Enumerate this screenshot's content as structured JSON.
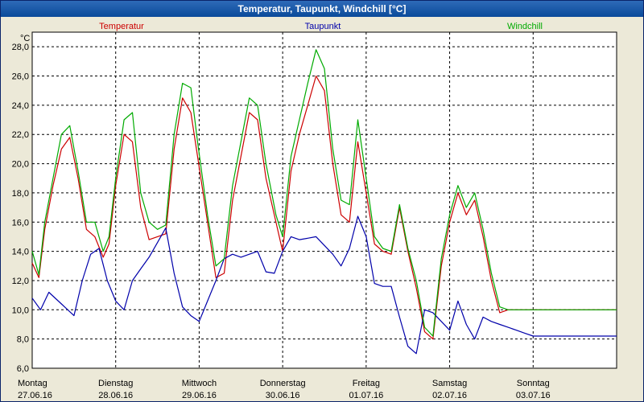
{
  "window": {
    "title": "Temperatur, Taupunkt, Windchill [°C]"
  },
  "colors": {
    "temperatur": "#CC0000",
    "taupunkt": "#0000AA",
    "windchill": "#00AA00",
    "plot_bg": "#FFFFFF",
    "grid": "#000000"
  },
  "chart_data": {
    "type": "line",
    "title": "Temperatur, Taupunkt, Windchill [°C]",
    "ylabel": "°C",
    "ylim": [
      6.0,
      29.0
    ],
    "yticks": [
      "6,0",
      "8,0",
      "10,0",
      "12,0",
      "14,0",
      "16,0",
      "18,0",
      "20,0",
      "22,0",
      "24,0",
      "26,0",
      "28,0"
    ],
    "xlim": [
      0,
      7
    ],
    "x_unit": "days since 27.06.16 00:00",
    "xticks": [
      {
        "day": "Montag",
        "date": "27.06.16"
      },
      {
        "day": "Dienstag",
        "date": "28.06.16"
      },
      {
        "day": "Mittwoch",
        "date": "29.06.16"
      },
      {
        "day": "Donnerstag",
        "date": "30.06.16"
      },
      {
        "day": "Freitag",
        "date": "01.07.16"
      },
      {
        "day": "Samstag",
        "date": "02.07.16"
      },
      {
        "day": "Sonntag",
        "date": "03.07.16"
      }
    ],
    "grid": true,
    "legend": "top",
    "series": [
      {
        "name": "Temperatur",
        "color": "#CC0000",
        "x": [
          0,
          0.08,
          0.15,
          0.25,
          0.35,
          0.45,
          0.55,
          0.65,
          0.75,
          0.85,
          0.92,
          1.0,
          1.1,
          1.2,
          1.3,
          1.4,
          1.5,
          1.6,
          1.7,
          1.8,
          1.9,
          1.98,
          2.1,
          2.2,
          2.3,
          2.4,
          2.5,
          2.6,
          2.7,
          2.8,
          2.92,
          3.0,
          3.1,
          3.2,
          3.3,
          3.4,
          3.5,
          3.6,
          3.7,
          3.8,
          3.9,
          4.0,
          4.1,
          4.2,
          4.3,
          4.4,
          4.5,
          4.6,
          4.7,
          4.8,
          4.9,
          5.0,
          5.1,
          5.2,
          5.3,
          5.4,
          5.5,
          5.6,
          5.7,
          5.8,
          5.9,
          6.0,
          6.1,
          6.2,
          6.3,
          6.4,
          6.5,
          6.6,
          6.7,
          6.8,
          6.9,
          7.0
        ],
        "y": [
          13.2,
          12.2,
          15.5,
          18.5,
          21.0,
          21.8,
          19.0,
          15.5,
          15.0,
          13.6,
          14.5,
          18.5,
          22.0,
          21.5,
          17.0,
          14.8,
          15.0,
          15.2,
          21.0,
          24.5,
          23.5,
          20.5,
          16.0,
          12.2,
          12.5,
          17.5,
          20.5,
          23.5,
          23.0,
          19.0,
          16.0,
          14.0,
          19.5,
          22.0,
          24.0,
          26.0,
          25.0,
          20.0,
          16.5,
          16.0,
          21.5,
          18.0,
          14.5,
          14.0,
          13.8,
          17.0,
          14.0,
          11.5,
          8.5,
          8.0,
          13.0,
          16.0,
          18.0,
          16.5,
          17.5,
          15.0,
          12.0,
          9.8,
          10.0,
          10.0,
          10.0,
          10.0,
          10.0,
          10.0,
          10.0,
          10.0,
          10.0,
          10.0,
          10.0,
          10.0,
          10.0,
          10.0
        ]
      },
      {
        "name": "Taupunkt",
        "color": "#0000AA",
        "x": [
          0,
          0.1,
          0.2,
          0.35,
          0.5,
          0.6,
          0.7,
          0.8,
          0.9,
          1.0,
          1.1,
          1.2,
          1.3,
          1.4,
          1.5,
          1.6,
          1.7,
          1.8,
          1.9,
          2.0,
          2.1,
          2.2,
          2.3,
          2.4,
          2.5,
          2.6,
          2.7,
          2.8,
          2.9,
          3.0,
          3.1,
          3.2,
          3.3,
          3.4,
          3.5,
          3.6,
          3.7,
          3.8,
          3.9,
          4.0,
          4.1,
          4.2,
          4.3,
          4.4,
          4.5,
          4.6,
          4.7,
          4.8,
          4.9,
          5.0,
          5.1,
          5.2,
          5.3,
          5.4,
          5.5,
          5.6,
          5.7,
          5.8,
          5.9,
          6.0,
          6.1,
          6.2,
          6.3,
          6.4,
          6.5,
          6.6,
          6.7,
          6.8,
          6.9,
          7.0
        ],
        "y": [
          10.8,
          10.0,
          11.2,
          10.4,
          9.6,
          12.0,
          13.8,
          14.2,
          12.0,
          10.6,
          10.0,
          12.0,
          12.8,
          13.6,
          14.6,
          15.6,
          12.5,
          10.2,
          9.6,
          9.2,
          10.6,
          12.0,
          13.5,
          13.8,
          13.6,
          13.8,
          14.0,
          12.6,
          12.5,
          14.0,
          15.0,
          14.8,
          14.9,
          15.0,
          14.4,
          13.8,
          13.0,
          14.2,
          16.4,
          15.0,
          11.8,
          11.6,
          11.6,
          9.5,
          7.5,
          7.0,
          10.0,
          9.8,
          9.2,
          8.6,
          10.6,
          9.0,
          8.0,
          9.5,
          9.2,
          9.0,
          8.8,
          8.6,
          8.4,
          8.2,
          8.2,
          8.2,
          8.2,
          8.2,
          8.2,
          8.2,
          8.2,
          8.2,
          8.2,
          8.2
        ]
      },
      {
        "name": "Windchill",
        "color": "#00AA00",
        "x": [
          0,
          0.08,
          0.15,
          0.25,
          0.35,
          0.45,
          0.55,
          0.65,
          0.75,
          0.85,
          0.92,
          1.0,
          1.1,
          1.2,
          1.3,
          1.4,
          1.5,
          1.6,
          1.7,
          1.8,
          1.9,
          1.98,
          2.1,
          2.2,
          2.3,
          2.4,
          2.5,
          2.6,
          2.7,
          2.8,
          2.92,
          3.0,
          3.1,
          3.2,
          3.3,
          3.4,
          3.5,
          3.6,
          3.7,
          3.8,
          3.9,
          4.0,
          4.1,
          4.2,
          4.3,
          4.4,
          4.5,
          4.6,
          4.7,
          4.8,
          4.9,
          5.0,
          5.1,
          5.2,
          5.3,
          5.4,
          5.5,
          5.6,
          5.7,
          5.8,
          5.9,
          6.0,
          6.1,
          6.2,
          6.3,
          6.4,
          6.5,
          6.6,
          6.7,
          6.8,
          6.9,
          7.0
        ],
        "y": [
          14.0,
          12.4,
          16.0,
          19.0,
          22.0,
          22.6,
          19.5,
          16.0,
          16.0,
          14.0,
          15.0,
          19.0,
          23.0,
          23.5,
          18.0,
          16.0,
          15.5,
          15.8,
          22.0,
          25.5,
          25.2,
          21.5,
          16.5,
          13.0,
          13.5,
          18.5,
          21.5,
          24.5,
          24.0,
          20.0,
          16.5,
          15.0,
          20.5,
          23.0,
          25.5,
          27.8,
          26.5,
          21.0,
          17.5,
          17.2,
          23.0,
          19.0,
          15.0,
          14.2,
          14.0,
          17.2,
          14.2,
          12.0,
          8.8,
          8.2,
          13.5,
          16.5,
          18.5,
          17.0,
          18.0,
          15.5,
          12.5,
          10.2,
          10.0,
          10.0,
          10.0,
          10.0,
          10.0,
          10.0,
          10.0,
          10.0,
          10.0,
          10.0,
          10.0,
          10.0,
          10.0,
          10.0
        ]
      }
    ]
  }
}
